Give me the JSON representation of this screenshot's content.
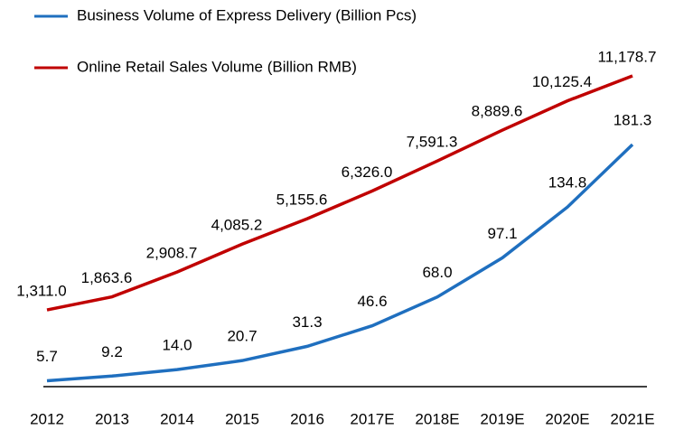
{
  "chart_data": {
    "type": "line",
    "categories": [
      "2012",
      "2013",
      "2014",
      "2015",
      "2016",
      "2017E",
      "2018E",
      "2019E",
      "2020E",
      "2021E"
    ],
    "series": [
      {
        "name": "Business Volume of Express Delivery (Billion Pcs)",
        "color": "#1f6fbf",
        "values": [
          5.7,
          9.2,
          14.0,
          20.7,
          31.3,
          46.6,
          68.0,
          97.1,
          134.8,
          181.3
        ],
        "value_labels": [
          "5.7",
          "9.2",
          "14.0",
          "20.7",
          "31.3",
          "46.6",
          "68.0",
          "97.1",
          "134.8",
          "181.3"
        ]
      },
      {
        "name": "Online Retail Sales Volume (Billion RMB)",
        "color": "#c00000",
        "axis": "y2",
        "values": [
          1311.0,
          1863.6,
          2908.7,
          4085.2,
          5155.6,
          6326.0,
          7591.3,
          8889.6,
          10125.4,
          11178.7
        ],
        "value_labels": [
          "1,311.0",
          "1,863.6",
          "2,908.7",
          "4,085.2",
          "5,155.6",
          "6,326.0",
          "7,591.3",
          "8,889.6",
          "10,125.4",
          "11,178.7"
        ]
      }
    ],
    "ylim": [
      0,
      235
    ],
    "y2lim": [
      -2000,
      11330
    ],
    "legend": "top-left"
  }
}
